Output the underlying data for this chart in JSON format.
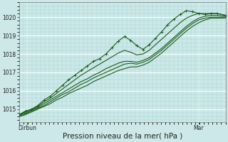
{
  "bg_color": "#cce8e8",
  "grid_color_major": "#ffffff",
  "grid_color_minor": "#aad4d4",
  "line_color": "#1a5c1a",
  "marker_color": "#1a5c1a",
  "xlabel": "Pression niveau de la mer( hPa )",
  "xlabel_fontsize": 7.5,
  "ylabel_ticks": [
    1015,
    1016,
    1017,
    1018,
    1019,
    1020
  ],
  "ylim": [
    1014.3,
    1020.8
  ],
  "xlim": [
    0.0,
    1.0
  ],
  "xtick_labels": [
    "Dirbun",
    "Mar"
  ],
  "xtick_positions": [
    0.04,
    0.87
  ],
  "red_vline_color": "#cc3333",
  "series": [
    {
      "x": [
        0.0,
        0.03,
        0.06,
        0.09,
        0.12,
        0.15,
        0.18,
        0.21,
        0.24,
        0.27,
        0.3,
        0.33,
        0.36,
        0.39,
        0.42,
        0.45,
        0.48,
        0.51,
        0.54,
        0.57,
        0.6,
        0.63,
        0.66,
        0.69,
        0.72,
        0.75,
        0.78,
        0.81,
        0.84,
        0.87,
        0.9,
        0.93,
        0.96,
        1.0
      ],
      "y": [
        1014.7,
        1014.9,
        1015.0,
        1015.2,
        1015.5,
        1015.7,
        1016.0,
        1016.3,
        1016.6,
        1016.85,
        1017.1,
        1017.35,
        1017.6,
        1017.75,
        1018.0,
        1018.35,
        1018.7,
        1018.95,
        1018.75,
        1018.45,
        1018.25,
        1018.5,
        1018.85,
        1019.2,
        1019.6,
        1019.9,
        1020.15,
        1020.35,
        1020.3,
        1020.2,
        1020.15,
        1020.2,
        1020.2,
        1020.1
      ],
      "marker": true
    },
    {
      "x": [
        0.0,
        0.03,
        0.06,
        0.09,
        0.12,
        0.15,
        0.18,
        0.21,
        0.24,
        0.27,
        0.3,
        0.33,
        0.36,
        0.39,
        0.42,
        0.45,
        0.48,
        0.51,
        0.54,
        0.57,
        0.6,
        0.63,
        0.66,
        0.69,
        0.72,
        0.75,
        0.78,
        0.81,
        0.84,
        0.87,
        0.9,
        0.93,
        0.96,
        1.0
      ],
      "y": [
        1014.7,
        1014.85,
        1015.0,
        1015.15,
        1015.4,
        1015.6,
        1015.85,
        1016.1,
        1016.35,
        1016.6,
        1016.85,
        1017.05,
        1017.25,
        1017.45,
        1017.65,
        1017.85,
        1018.05,
        1018.2,
        1018.1,
        1017.95,
        1018.0,
        1018.2,
        1018.5,
        1018.8,
        1019.1,
        1019.4,
        1019.7,
        1019.95,
        1020.1,
        1020.2,
        1020.2,
        1020.2,
        1020.2,
        1020.1
      ],
      "marker": false
    },
    {
      "x": [
        0.0,
        0.03,
        0.06,
        0.09,
        0.12,
        0.15,
        0.18,
        0.21,
        0.24,
        0.27,
        0.3,
        0.33,
        0.36,
        0.39,
        0.42,
        0.45,
        0.48,
        0.51,
        0.54,
        0.57,
        0.6,
        0.63,
        0.66,
        0.69,
        0.72,
        0.75,
        0.78,
        0.81,
        0.84,
        0.87,
        0.9,
        0.93,
        0.96,
        1.0
      ],
      "y": [
        1014.7,
        1014.8,
        1014.95,
        1015.1,
        1015.3,
        1015.5,
        1015.7,
        1015.9,
        1016.1,
        1016.3,
        1016.5,
        1016.65,
        1016.85,
        1017.0,
        1017.2,
        1017.35,
        1017.5,
        1017.6,
        1017.6,
        1017.55,
        1017.65,
        1017.8,
        1018.05,
        1018.3,
        1018.6,
        1018.9,
        1019.2,
        1019.5,
        1019.75,
        1019.95,
        1020.05,
        1020.1,
        1020.1,
        1020.05
      ],
      "marker": false
    },
    {
      "x": [
        0.0,
        0.03,
        0.06,
        0.09,
        0.12,
        0.15,
        0.18,
        0.21,
        0.24,
        0.27,
        0.3,
        0.33,
        0.36,
        0.39,
        0.42,
        0.45,
        0.48,
        0.51,
        0.54,
        0.57,
        0.6,
        0.63,
        0.66,
        0.69,
        0.72,
        0.75,
        0.78,
        0.81,
        0.84,
        0.87,
        0.9,
        0.93,
        0.96,
        1.0
      ],
      "y": [
        1014.65,
        1014.75,
        1014.9,
        1015.05,
        1015.2,
        1015.4,
        1015.6,
        1015.8,
        1015.95,
        1016.15,
        1016.35,
        1016.5,
        1016.7,
        1016.85,
        1017.0,
        1017.15,
        1017.3,
        1017.45,
        1017.5,
        1017.45,
        1017.55,
        1017.7,
        1017.95,
        1018.2,
        1018.5,
        1018.8,
        1019.1,
        1019.4,
        1019.65,
        1019.85,
        1019.95,
        1020.0,
        1020.0,
        1020.0
      ],
      "marker": false
    },
    {
      "x": [
        0.0,
        0.03,
        0.06,
        0.09,
        0.12,
        0.15,
        0.18,
        0.21,
        0.24,
        0.27,
        0.3,
        0.33,
        0.36,
        0.39,
        0.42,
        0.45,
        0.48,
        0.51,
        0.54,
        0.57,
        0.6,
        0.63,
        0.66,
        0.69,
        0.72,
        0.75,
        0.78,
        0.81,
        0.84,
        0.87,
        0.9,
        0.93,
        0.96,
        1.0
      ],
      "y": [
        1014.6,
        1014.7,
        1014.85,
        1015.0,
        1015.15,
        1015.3,
        1015.5,
        1015.65,
        1015.85,
        1016.0,
        1016.15,
        1016.3,
        1016.5,
        1016.65,
        1016.8,
        1016.95,
        1017.1,
        1017.2,
        1017.3,
        1017.3,
        1017.4,
        1017.55,
        1017.8,
        1018.05,
        1018.35,
        1018.65,
        1018.95,
        1019.25,
        1019.5,
        1019.7,
        1019.85,
        1019.95,
        1019.95,
        1019.95
      ],
      "marker": false
    }
  ]
}
